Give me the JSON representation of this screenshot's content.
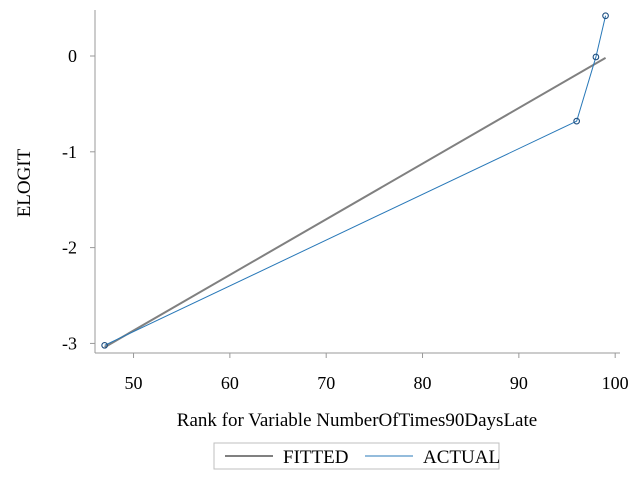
{
  "chart_data": {
    "type": "line",
    "xlabel": "Rank for Variable NumberOfTimes90DaysLate",
    "ylabel": "ELOGIT",
    "xlim": [
      46,
      100.5
    ],
    "ylim": [
      -3.1,
      0.48
    ],
    "xticks": [
      50,
      60,
      70,
      80,
      90,
      100
    ],
    "yticks": [
      0,
      -1,
      -2,
      -3
    ],
    "grid": false,
    "legend_position": "bottom",
    "series": [
      {
        "name": "FITTED",
        "color": "#808080",
        "markers": false,
        "x": [
          47,
          99
        ],
        "y": [
          -3.04,
          -0.02
        ]
      },
      {
        "name": "ACTUAL",
        "color": "#2878b8",
        "markers": true,
        "x": [
          47,
          96,
          98,
          99
        ],
        "y": [
          -3.02,
          -0.68,
          -0.01,
          0.42
        ]
      }
    ]
  }
}
